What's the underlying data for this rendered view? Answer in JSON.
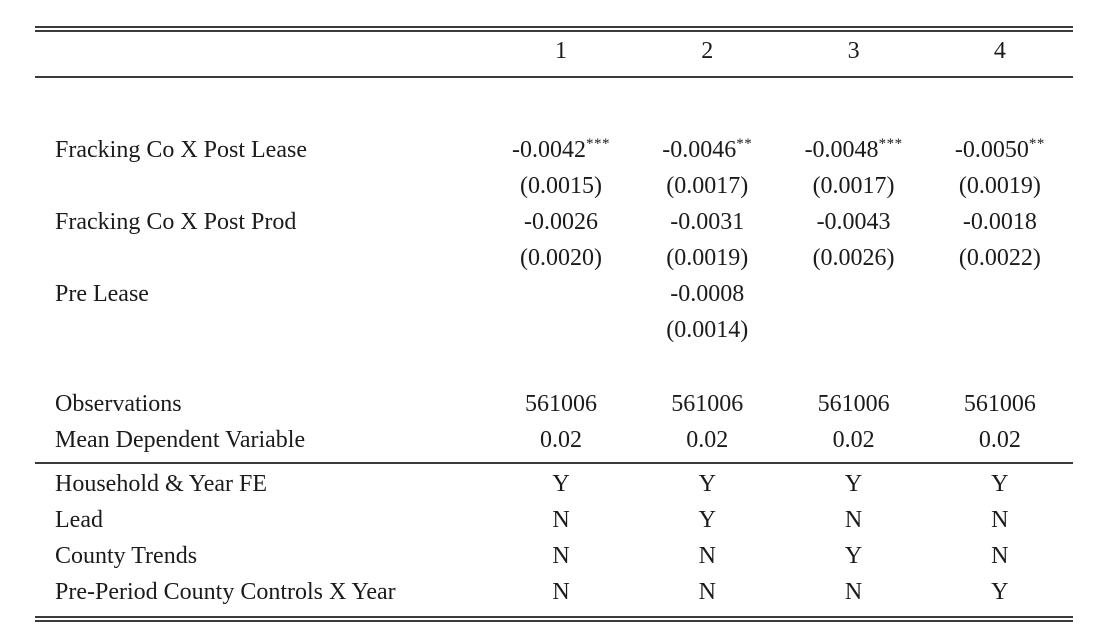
{
  "table": {
    "column_headers": [
      "1",
      "2",
      "3",
      "4"
    ],
    "coefficient_rows": [
      {
        "label": "Fracking Co X Post Lease",
        "estimates": [
          {
            "value": "-0.0042",
            "stars": "***"
          },
          {
            "value": "-0.0046",
            "stars": "**"
          },
          {
            "value": "-0.0048",
            "stars": "***"
          },
          {
            "value": "-0.0050",
            "stars": "**"
          }
        ],
        "std_errors": [
          "(0.0015)",
          "(0.0017)",
          "(0.0017)",
          "(0.0019)"
        ]
      },
      {
        "label": "Fracking Co X Post Prod",
        "estimates": [
          {
            "value": "-0.0026",
            "stars": ""
          },
          {
            "value": "-0.0031",
            "stars": ""
          },
          {
            "value": "-0.0043",
            "stars": ""
          },
          {
            "value": "-0.0018",
            "stars": ""
          }
        ],
        "std_errors": [
          "(0.0020)",
          "(0.0019)",
          "(0.0026)",
          "(0.0022)"
        ]
      },
      {
        "label": "Pre Lease",
        "estimates": [
          {
            "value": "",
            "stars": ""
          },
          {
            "value": "-0.0008",
            "stars": ""
          },
          {
            "value": "",
            "stars": ""
          },
          {
            "value": "",
            "stars": ""
          }
        ],
        "std_errors": [
          "",
          "(0.0014)",
          "",
          ""
        ]
      }
    ],
    "summary_rows": [
      {
        "label": "Observations",
        "values": [
          "561006",
          "561006",
          "561006",
          "561006"
        ]
      },
      {
        "label": "Mean Dependent Variable",
        "values": [
          "0.02",
          "0.02",
          "0.02",
          "0.02"
        ]
      }
    ],
    "spec_rows": [
      {
        "label": "Household & Year FE",
        "values": [
          "Y",
          "Y",
          "Y",
          "Y"
        ]
      },
      {
        "label": "Lead",
        "values": [
          "N",
          "Y",
          "N",
          "N"
        ]
      },
      {
        "label": "County Trends",
        "values": [
          "N",
          "N",
          "Y",
          "N"
        ]
      },
      {
        "label": "Pre-Period County Controls X Year",
        "values": [
          "N",
          "N",
          "N",
          "Y"
        ]
      }
    ]
  }
}
